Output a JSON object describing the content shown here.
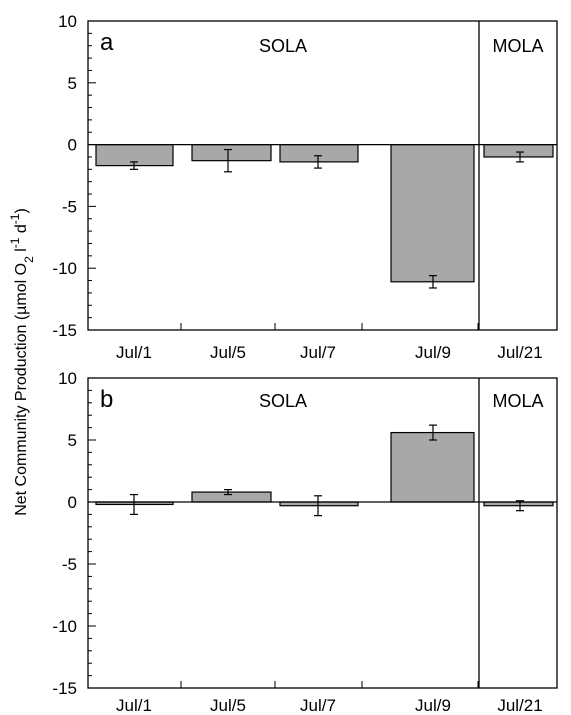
{
  "chart_data": {
    "type": "bar",
    "ylabel": "Net Community Production (µmol O₂ l⁻¹ d⁻¹)",
    "ylabel_parts": {
      "a": "Net Community Production  (µmol O",
      "sub1": "2",
      "b": " l",
      "sup1": "-1",
      "c": " d",
      "sup2": "-1",
      "d": ")"
    },
    "ylim": [
      -15,
      10
    ],
    "yticks": [
      10,
      5,
      0,
      -5,
      -10,
      -15
    ],
    "bar_color": "#a8a8a8",
    "region_labels": [
      "SOLA",
      "MOLA"
    ],
    "panels": [
      {
        "letter": "a",
        "categories": [
          "Jul/1",
          "Jul/5",
          "Jul/7",
          "Jul/9",
          "Jul/21"
        ],
        "values": [
          -1.7,
          -1.3,
          -1.4,
          -11.1,
          -1.0
        ],
        "errors": [
          0.3,
          0.9,
          0.5,
          0.5,
          0.4
        ]
      },
      {
        "letter": "b",
        "categories": [
          "Jul/1",
          "Jul/5",
          "Jul/7",
          "Jul/9",
          "Jul/21"
        ],
        "values": [
          -0.2,
          0.8,
          -0.3,
          5.6,
          -0.3
        ],
        "errors": [
          0.8,
          0.2,
          0.8,
          0.6,
          0.4
        ]
      }
    ]
  }
}
